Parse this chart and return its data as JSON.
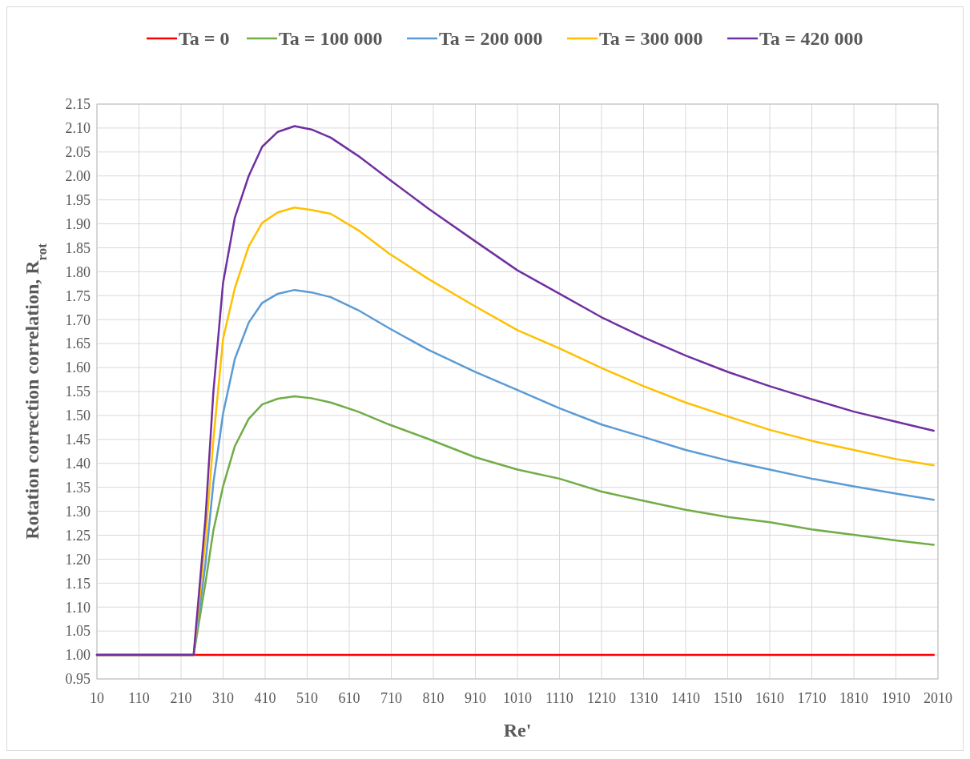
{
  "chart_data": {
    "type": "line",
    "xlabel": "Re'",
    "ylabel": "Rotation correction correlation, R$_{rot}$",
    "legend": "top",
    "grid": true,
    "line_style": "solid",
    "marker": "none",
    "x": [
      10,
      240,
      268,
      287,
      310,
      338,
      371,
      403,
      440,
      480,
      520,
      566,
      631,
      705,
      798,
      909,
      1010,
      1110,
      1210,
      1310,
      1410,
      1510,
      1610,
      1710,
      1810,
      1910,
      2000
    ],
    "xlim": [
      10,
      2010
    ],
    "xticks": [
      10,
      110,
      210,
      310,
      410,
      510,
      610,
      710,
      810,
      910,
      1010,
      1110,
      1210,
      1310,
      1410,
      1510,
      1610,
      1710,
      1810,
      1910,
      2010
    ],
    "ylim": [
      0.95,
      2.15
    ],
    "yticks": [
      0.95,
      {
        "value": 1,
        "label": "1.00"
      },
      1.05,
      {
        "value": 1.1,
        "label": "1.10"
      },
      1.15,
      {
        "value": 1.2,
        "label": "1.20"
      },
      1.25,
      {
        "value": 1.3,
        "label": "1.30"
      },
      1.35,
      {
        "value": 1.4,
        "label": "1.40"
      },
      1.45,
      {
        "value": 1.5,
        "label": "1.50"
      },
      1.55,
      {
        "value": 1.6,
        "label": "1.60"
      },
      1.65,
      {
        "value": 1.7,
        "label": "1.70"
      },
      1.75,
      {
        "value": 1.8,
        "label": "1.80"
      },
      1.85,
      {
        "value": 1.9,
        "label": "1.90"
      },
      1.95,
      {
        "value": 2,
        "label": "2.00"
      },
      2.05,
      {
        "value": 2.1,
        "label": "2.10"
      },
      2.15
    ],
    "series": [
      {
        "name": "Ta = 0",
        "color": "#ff0000",
        "x": [
          10,
          2000
        ],
        "values": [
          1,
          1
        ]
      },
      {
        "name": "Ta = 100 000",
        "color": "#70ad47",
        "values": [
          1,
          1,
          1.15,
          1.26,
          1.352,
          1.436,
          1.493,
          1.523,
          1.535,
          1.54,
          1.536,
          1.527,
          1.508,
          1.481,
          1.451,
          1.413,
          1.387,
          1.368,
          1.341,
          1.322,
          1.303,
          1.288,
          1.277,
          1.262,
          1.251,
          1.239,
          1.23
        ]
      },
      {
        "name": "Ta = 200 000",
        "color": "#5b9bd5",
        "values": [
          1,
          1,
          1.19,
          1.36,
          1.504,
          1.618,
          1.694,
          1.735,
          1.754,
          1.762,
          1.757,
          1.747,
          1.72,
          1.682,
          1.637,
          1.591,
          1.553,
          1.515,
          1.481,
          1.455,
          1.428,
          1.406,
          1.387,
          1.368,
          1.352,
          1.337,
          1.324
        ]
      },
      {
        "name": "Ta = 300 000",
        "color": "#ffc000",
        "values": [
          1,
          1,
          1.24,
          1.45,
          1.66,
          1.766,
          1.853,
          1.902,
          1.924,
          1.934,
          1.929,
          1.921,
          1.887,
          1.838,
          1.785,
          1.728,
          1.678,
          1.64,
          1.599,
          1.561,
          1.527,
          1.498,
          1.47,
          1.447,
          1.428,
          1.409,
          1.396
        ]
      },
      {
        "name": "Ta = 420 000",
        "color": "#7030a0",
        "values": [
          1,
          1,
          1.284,
          1.55,
          1.777,
          1.913,
          2,
          2.061,
          2.092,
          2.104,
          2.097,
          2.08,
          2.042,
          1.993,
          1.932,
          1.864,
          1.803,
          1.754,
          1.705,
          1.663,
          1.625,
          1.591,
          1.561,
          1.534,
          1.508,
          1.487,
          1.468
        ]
      }
    ]
  }
}
